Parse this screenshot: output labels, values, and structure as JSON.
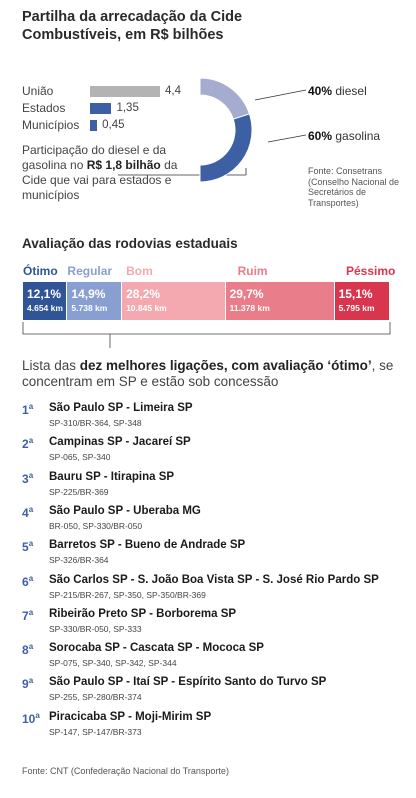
{
  "title": "Partilha da arrecadação da Cide Combustíveis, em R$ bilhões",
  "colors": {
    "uniao": "#b3b3b3",
    "estados": "#3d5fa3",
    "diesel": "#a5acd0",
    "gasolina": "#3d5fa3",
    "otimo": "#2f5597",
    "regular": "#8a9fd1",
    "bom": "#f4a9b1",
    "ruim": "#ea7d8a",
    "pessimo": "#d8354e",
    "rank": "#3d5fa3"
  },
  "chart_data": [
    {
      "type": "bar",
      "categories": [
        "União",
        "Estados",
        "Municípios"
      ],
      "values": [
        4.4,
        1.35,
        0.45
      ],
      "value_labels": [
        "4,4",
        "1,35",
        "0,45"
      ],
      "title": "Partilha da arrecadação da Cide Combustíveis, em R$ bilhões"
    },
    {
      "type": "pie",
      "categories": [
        "diesel",
        "gasolina"
      ],
      "values": [
        40,
        60
      ],
      "labels": [
        "40%",
        "60%"
      ],
      "note": {
        "pre": "Participação do diesel e da gasolina no ",
        "highlight": "R$ 1,8 bilhão",
        "post": " da Cide que vai para estados e municípios"
      },
      "source": "Fonte: Consetrans (Conselho Nacional de Secretários de Transportes)"
    },
    {
      "type": "bar",
      "stacked": true,
      "title": "Avaliação das rodovias estaduais",
      "categories": [
        "Ótimo",
        "Regular",
        "Bom",
        "Ruim",
        "Péssimo"
      ],
      "values": [
        12.1,
        14.9,
        28.2,
        29.7,
        15.1
      ],
      "pct_labels": [
        "12,1%",
        "14,9%",
        "28,2%",
        "29,7%",
        "15,1%"
      ],
      "km_labels": [
        "4.654 km",
        "5.738 km",
        "10.845 km",
        "11.378 km",
        "5.795 km"
      ]
    }
  ],
  "list": {
    "intro_pre": "Lista das ",
    "intro_bold": "dez melhores ligações, com avaliação ‘ótimo’",
    "intro_post": ", se concentram em SP e estão sob concessão",
    "ord": "a",
    "routes": [
      {
        "rank": "1",
        "name": "São Paulo SP - Limeira SP",
        "highways": "SP-310/BR-364, SP-348"
      },
      {
        "rank": "2",
        "name": "Campinas SP - Jacareí SP",
        "highways": "SP-065, SP-340"
      },
      {
        "rank": "3",
        "name": "Bauru SP - Itirapina SP",
        "highways": "SP-225/BR-369"
      },
      {
        "rank": "4",
        "name": "São Paulo SP - Uberaba MG",
        "highways": "BR-050, SP-330/BR-050"
      },
      {
        "rank": "5",
        "name": "Barretos SP - Bueno de Andrade SP",
        "highways": "SP-326/BR-364"
      },
      {
        "rank": "6",
        "name": "São Carlos SP - S. João Boa Vista SP - S. José Rio Pardo SP",
        "highways": "SP-215/BR-267, SP-350, SP-350/BR-369"
      },
      {
        "rank": "7",
        "name": "Ribeirão Preto SP - Borborema SP",
        "highways": "SP-330/BR-050, SP-333"
      },
      {
        "rank": "8",
        "name": "Sorocaba SP - Cascata SP - Mococa SP",
        "highways": "SP-075, SP-340, SP-342, SP-344"
      },
      {
        "rank": "9",
        "name": "São Paulo SP - Itaí SP - Espírito Santo do Turvo SP",
        "highways": "SP-255, SP-280/BR-374"
      },
      {
        "rank": "10",
        "name": "Piracicaba SP - Moji-Mirim SP",
        "highways": "SP-147, SP-147/BR-373"
      }
    ]
  },
  "footer": "Fonte: CNT (Confederação Nacional do Transporte)"
}
